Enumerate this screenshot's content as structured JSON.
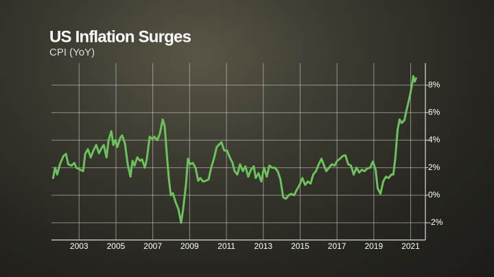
{
  "chart_data": {
    "type": "line",
    "title": "US Inflation Surges",
    "subtitle": "CPI (YoY)",
    "x": [
      2001.59,
      2001.7,
      2001.81,
      2001.96,
      2002.15,
      2002.29,
      2002.41,
      2002.59,
      2002.74,
      2002.85,
      2003.0,
      2003.22,
      2003.33,
      2003.48,
      2003.63,
      2003.78,
      2003.93,
      2004.08,
      2004.19,
      2004.34,
      2004.49,
      2004.6,
      2004.75,
      2004.86,
      2004.97,
      2005.08,
      2005.23,
      2005.34,
      2005.49,
      2005.64,
      2005.79,
      2005.9,
      2006.01,
      2006.16,
      2006.31,
      2006.42,
      2006.57,
      2006.68,
      2006.83,
      2006.98,
      2007.09,
      2007.24,
      2007.39,
      2007.54,
      2007.65,
      2007.76,
      2007.87,
      2007.98,
      2008.09,
      2008.24,
      2008.39,
      2008.54,
      2008.65,
      2008.8,
      2008.91,
      2009.02,
      2009.17,
      2009.32,
      2009.47,
      2009.58,
      2009.73,
      2009.88,
      2010.03,
      2010.17,
      2010.32,
      2010.47,
      2010.58,
      2010.73,
      2010.88,
      2011.03,
      2011.18,
      2011.33,
      2011.44,
      2011.59,
      2011.74,
      2011.89,
      2012.03,
      2012.18,
      2012.33,
      2012.48,
      2012.59,
      2012.74,
      2012.89,
      2013.04,
      2013.19,
      2013.33,
      2013.48,
      2013.63,
      2013.78,
      2013.93,
      2014.08,
      2014.23,
      2014.38,
      2014.52,
      2014.67,
      2014.82,
      2014.97,
      2015.12,
      2015.27,
      2015.42,
      2015.57,
      2015.71,
      2015.86,
      2016.01,
      2016.16,
      2016.27,
      2016.42,
      2016.57,
      2016.72,
      2016.87,
      2017.01,
      2017.16,
      2017.31,
      2017.46,
      2017.61,
      2017.76,
      2017.91,
      2018.06,
      2018.21,
      2018.35,
      2018.5,
      2018.65,
      2018.8,
      2018.95,
      2019.1,
      2019.21,
      2019.36,
      2019.51,
      2019.66,
      2019.8,
      2019.95,
      2020.06,
      2020.17,
      2020.29,
      2020.4,
      2020.51,
      2020.66,
      2020.77,
      2020.88,
      2021.0,
      2021.07,
      2021.14,
      2021.22,
      2021.29
    ],
    "series": [
      {
        "name": "CPI (YoY)",
        "color": "#6cc25c",
        "values": [
          1.25,
          2.0,
          1.5,
          2.25,
          2.85,
          3.0,
          2.25,
          2.15,
          2.35,
          2.0,
          1.9,
          1.75,
          3.0,
          3.35,
          2.75,
          3.25,
          3.65,
          3.05,
          3.35,
          3.65,
          2.75,
          4.0,
          4.65,
          3.65,
          4.0,
          3.5,
          4.15,
          4.35,
          3.75,
          2.25,
          1.35,
          2.5,
          2.15,
          2.75,
          2.5,
          2.6,
          2.0,
          2.65,
          4.25,
          4.1,
          4.25,
          4.0,
          4.5,
          5.5,
          5.0,
          3.0,
          1.25,
          0.0,
          0.15,
          -0.5,
          -1.0,
          -2.0,
          -1.0,
          0.75,
          2.65,
          2.25,
          2.35,
          2.0,
          1.05,
          1.25,
          1.0,
          1.05,
          1.15,
          2.0,
          2.65,
          3.5,
          3.65,
          3.85,
          3.25,
          3.25,
          2.75,
          2.35,
          1.75,
          1.5,
          2.25,
          1.75,
          2.1,
          1.35,
          1.85,
          2.1,
          1.25,
          1.6,
          1.0,
          2.0,
          1.35,
          2.15,
          2.0,
          2.0,
          1.75,
          1.15,
          -0.15,
          -0.25,
          0.0,
          0.1,
          0.0,
          0.4,
          0.75,
          1.25,
          0.75,
          1.0,
          0.85,
          1.5,
          1.75,
          2.25,
          2.65,
          2.25,
          1.75,
          2.0,
          2.25,
          2.15,
          2.5,
          2.65,
          2.85,
          2.9,
          2.25,
          2.15,
          1.5,
          2.0,
          1.65,
          1.85,
          1.75,
          1.95,
          2.0,
          2.45,
          1.85,
          0.5,
          0.1,
          1.0,
          1.35,
          1.25,
          1.5,
          1.5,
          2.75,
          4.75,
          5.5,
          5.25,
          5.45,
          6.15,
          6.75,
          7.5,
          8.0,
          8.65,
          8.25,
          8.5
        ]
      }
    ],
    "xlim": [
      2001.5,
      2021.8
    ],
    "xticks": [
      2003,
      2005,
      2007,
      2009,
      2011,
      2013,
      2015,
      2017,
      2019,
      2021
    ],
    "ylim": [
      -3.25,
      9.6
    ],
    "yticks": [
      {
        "value": -2,
        "label": "-2%"
      },
      {
        "value": 0,
        "label": "0%"
      },
      {
        "value": 2,
        "label": "2%"
      },
      {
        "value": 4,
        "label": "4%"
      },
      {
        "value": 6,
        "label": "6%"
      },
      {
        "value": 8,
        "label": "8%"
      }
    ],
    "grid": true
  }
}
